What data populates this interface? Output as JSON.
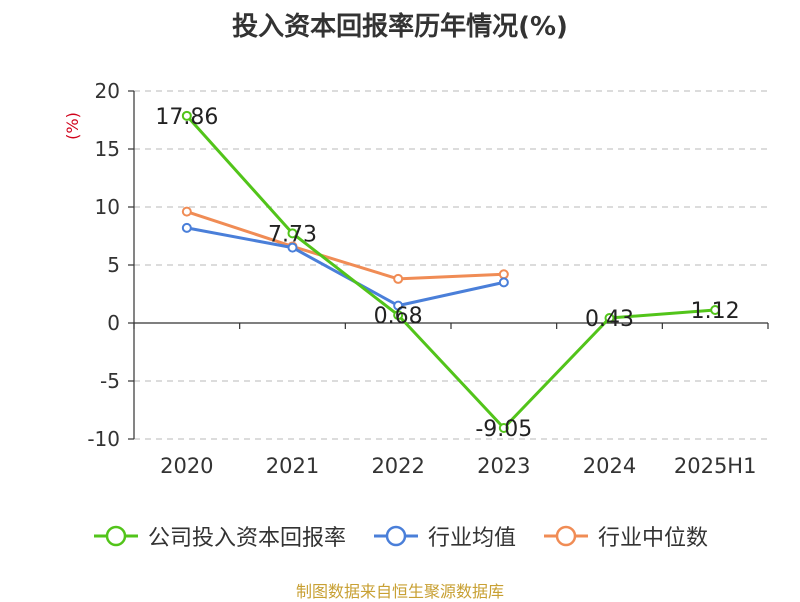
{
  "chart_data": {
    "type": "line",
    "title": "投入资本回报率历年情况(%)",
    "ylabel": "(%)",
    "categories": [
      "2020",
      "2021",
      "2022",
      "2023",
      "2024",
      "2025H1"
    ],
    "ylim": [
      -10,
      20
    ],
    "yticks": [
      20,
      15,
      10,
      5,
      0,
      -5,
      -10
    ],
    "grid": true,
    "legend_position": "bottom",
    "series": [
      {
        "name": "公司投入资本回报率",
        "color": "#52c41a",
        "values": [
          17.86,
          7.73,
          0.68,
          -9.05,
          0.43,
          1.12
        ],
        "labels": [
          "17.86",
          "7.73",
          "0.68",
          "-9.05",
          "0.43",
          "1.12"
        ]
      },
      {
        "name": "行业均值",
        "color": "#4a7fd9",
        "values": [
          8.2,
          6.5,
          1.5,
          3.5,
          null,
          null
        ]
      },
      {
        "name": "行业中位数",
        "color": "#f08c55",
        "values": [
          9.6,
          6.6,
          3.8,
          4.2,
          null,
          null
        ]
      }
    ]
  },
  "source": "制图数据来自恒生聚源数据库"
}
